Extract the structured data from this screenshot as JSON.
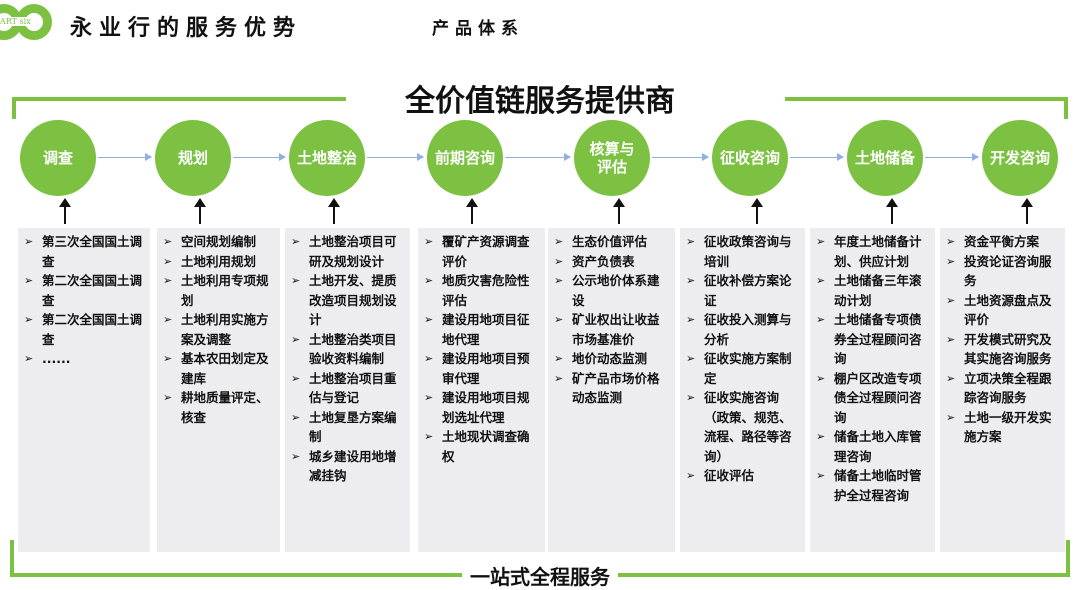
{
  "header": {
    "logo_text": "ART six",
    "title": "永业行的服务优势",
    "subtitle": "产品体系"
  },
  "main_title": "全价值链服务提供商",
  "footer": "一站式全程服务",
  "accent_color": "#7dc142",
  "stages": [
    {
      "label": "调查",
      "items": [
        "第三次全国国土调查",
        "第二次全国国土调查",
        "第二次全国国土调查",
        "......"
      ]
    },
    {
      "label": "规划",
      "items": [
        "空间规划编制",
        "土地利用规划",
        "土地利用专项规划",
        "土地利用实施方案及调整",
        "基本农田划定及建库",
        "耕地质量评定、核查"
      ]
    },
    {
      "label": "土地整治",
      "items": [
        "土地整治项目可研及规划设计",
        "土地开发、提质改造项目规划设计",
        "土地整治类项目验收资料编制",
        "土地整治项目重估与登记",
        "土地复垦方案编制",
        "城乡建设用地增减挂钩"
      ]
    },
    {
      "label": "前期咨询",
      "items": [
        "覆矿产资源调查评价",
        "地质灾害危险性评估",
        "建设用地项目征地代理",
        "建设用地项目预审代理",
        "建设用地项目规划选址代理",
        "土地现状调查确权"
      ]
    },
    {
      "label": "核算与评估",
      "items": [
        "生态价值评估",
        "资产负债表",
        "公示地价体系建设",
        "矿业权出让收益市场基准价",
        "地价动态监测",
        "矿产品市场价格动态监测"
      ]
    },
    {
      "label": "征收咨询",
      "items": [
        "征收政策咨询与培训",
        "征收补偿方案论证",
        "征收投入测算与分析",
        "征收实施方案制定",
        "征收实施咨询（政策、规范、流程、路径等咨询）",
        "征收评估"
      ]
    },
    {
      "label": "土地储备",
      "items": [
        "年度土地储备计划、供应计划",
        "土地储备三年滚动计划",
        "土地储备专项债券全过程顾问咨询",
        "棚户区改造专项债全过程顾问咨询",
        "储备土地入库管理咨询",
        "储备土地临时管护全过程咨询"
      ]
    },
    {
      "label": "开发咨询",
      "items": [
        "资金平衡方案",
        "投资论证咨询服务",
        "土地资源盘点及评价",
        "开发模式研究及其实施咨询服务",
        "立项决策全程跟踪咨询服务",
        "土地一级开发实施方案"
      ]
    }
  ]
}
